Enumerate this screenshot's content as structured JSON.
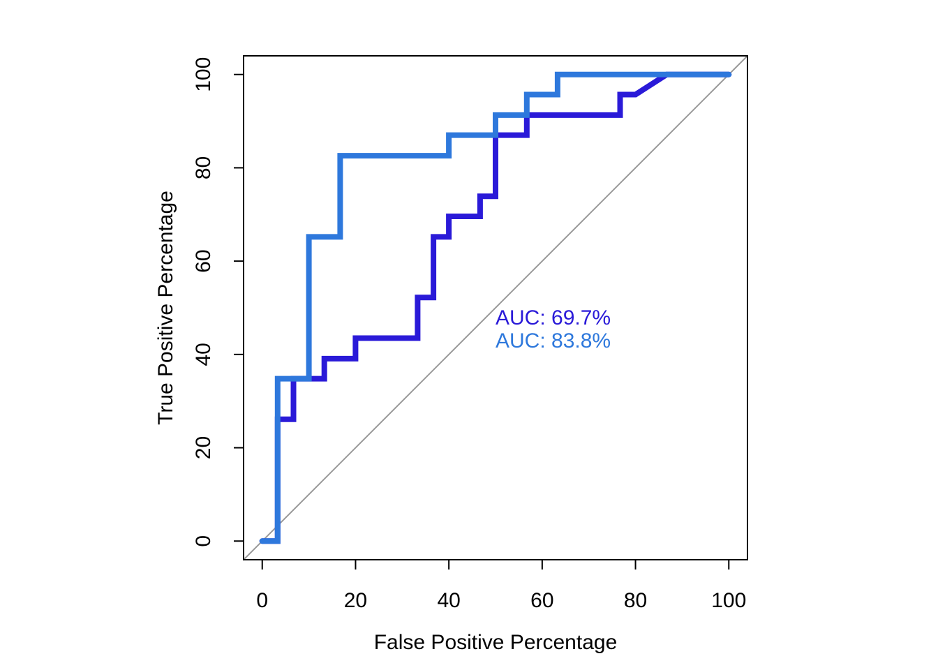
{
  "chart_data": {
    "type": "line",
    "title": "",
    "xlabel": "False Positive Percentage",
    "ylabel": "True Positive Percentage",
    "xlim": [
      -4,
      104
    ],
    "ylim": [
      -4,
      104
    ],
    "x_ticks": [
      "0",
      "20",
      "40",
      "60",
      "80",
      "100"
    ],
    "y_ticks": [
      "0",
      "20",
      "40",
      "60",
      "80",
      "100"
    ],
    "grid": false,
    "reference_line": {
      "from": [
        -4,
        -4
      ],
      "to": [
        104,
        104
      ],
      "color": "#999999"
    },
    "series": [
      {
        "name": "AUC: 69.7%",
        "color": "#2a1ad8",
        "x": [
          0,
          3.3,
          3.3,
          6.7,
          6.7,
          13.3,
          13.3,
          20,
          20,
          33.3,
          33.3,
          36.7,
          36.7,
          40,
          40,
          46.7,
          46.7,
          50,
          50,
          56.7,
          56.7,
          76.7,
          76.7,
          80,
          80,
          86.7,
          100
        ],
        "y": [
          0,
          0,
          26.1,
          26.1,
          34.8,
          34.8,
          39.1,
          39.1,
          43.5,
          43.5,
          52.2,
          52.2,
          65.2,
          65.2,
          69.6,
          69.6,
          73.9,
          73.9,
          87,
          87,
          91.3,
          91.3,
          95.7,
          95.7,
          95.7,
          100,
          100
        ]
      },
      {
        "name": "AUC: 83.8%",
        "color": "#2e78dc",
        "x": [
          0,
          3.3,
          3.3,
          10,
          10,
          16.7,
          16.7,
          40,
          40,
          50,
          50,
          56.7,
          56.7,
          63.3,
          63.3,
          100
        ],
        "y": [
          0,
          0,
          34.8,
          34.8,
          65.2,
          65.2,
          82.6,
          82.6,
          87,
          87,
          91.3,
          91.3,
          95.7,
          95.7,
          100,
          100
        ]
      }
    ],
    "annotations": [
      {
        "text": "AUC: 69.7%",
        "color": "#2a1ad8",
        "x": 50,
        "y": 48
      },
      {
        "text": "AUC: 83.8%",
        "color": "#2e78dc",
        "x": 50,
        "y": 43
      }
    ]
  }
}
